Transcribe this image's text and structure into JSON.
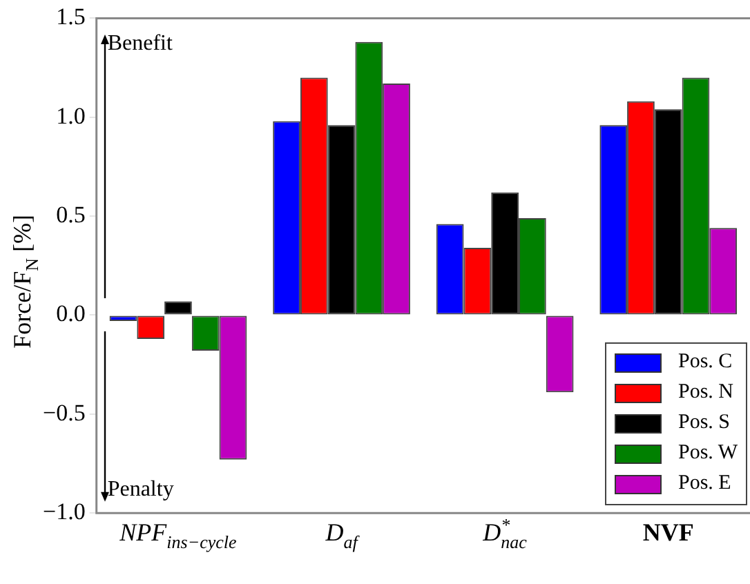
{
  "chart_data": {
    "type": "bar",
    "ylabel": "Force/F$_{N}$ [%]",
    "categories": [
      "NPF$_{ins−cycle}$",
      "D$_{af}$",
      "D$^{*}$$_{nac}$",
      "NVF"
    ],
    "series": [
      {
        "name": "Pos. C",
        "color": "#0000ff",
        "values": [
          -0.03,
          0.98,
          0.46,
          0.96
        ]
      },
      {
        "name": "Pos. N",
        "color": "#ff0000",
        "values": [
          -0.12,
          1.2,
          0.34,
          1.08
        ]
      },
      {
        "name": "Pos. S",
        "color": "#000000",
        "values": [
          0.07,
          0.96,
          0.62,
          1.04
        ]
      },
      {
        "name": "Pos. W",
        "color": "#008000",
        "values": [
          -0.18,
          1.38,
          0.49,
          1.2
        ]
      },
      {
        "name": "Pos. E",
        "color": "#bf00bf",
        "values": [
          -0.73,
          1.17,
          -0.39,
          0.44
        ]
      }
    ],
    "ylim": [
      -1.0,
      1.5
    ],
    "yticks": [
      {
        "value": -1.0,
        "label": "−1.0"
      },
      {
        "value": -0.5,
        "label": "−0.5"
      },
      {
        "value": 0,
        "label": "0.0"
      },
      {
        "value": 0.5,
        "label": "0.5"
      },
      {
        "value": 1.0,
        "label": "1.0"
      },
      {
        "value": 1.5,
        "label": "1.5"
      }
    ],
    "annotations": [
      "Benefit",
      "Penalty"
    ],
    "legend": "bottom right",
    "grid": false
  }
}
